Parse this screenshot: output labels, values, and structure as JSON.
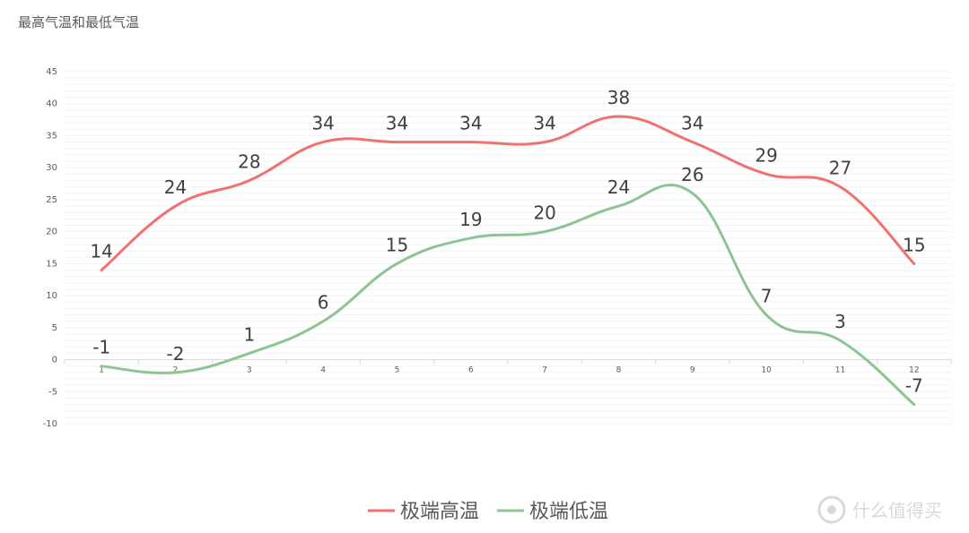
{
  "chart_data": {
    "type": "line",
    "title": "最高气温和最低气温",
    "x": [
      1,
      2,
      3,
      4,
      5,
      6,
      7,
      8,
      9,
      10,
      11,
      12
    ],
    "series": [
      {
        "name": "极端高温",
        "color": "#f07170",
        "values": [
          14,
          24,
          28,
          34,
          34,
          34,
          34,
          38,
          34,
          29,
          27,
          15
        ]
      },
      {
        "name": "极端低温",
        "color": "#8cc593",
        "values": [
          -1,
          -2,
          1,
          6,
          15,
          19,
          20,
          24,
          26,
          7,
          3,
          -7
        ]
      }
    ],
    "y_ticks": [
      45,
      40,
      35,
      30,
      25,
      20,
      15,
      10,
      5,
      0,
      -5,
      -10
    ],
    "ylim": [
      -10,
      45
    ],
    "smooth": true,
    "grid": true,
    "legend_position": "bottom"
  },
  "watermark": {
    "text": "什么值得买",
    "icon": "smzdm-logo-icon"
  }
}
